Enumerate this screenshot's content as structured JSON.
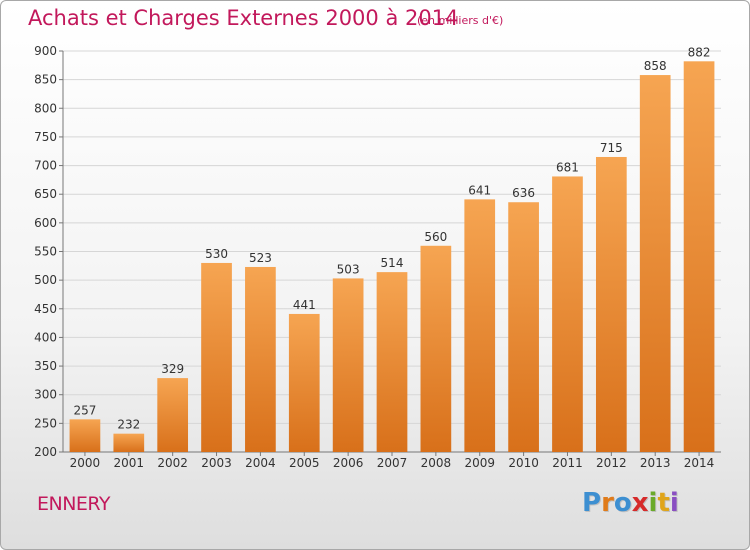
{
  "title": "Achats et Charges Externes 2000 à 2014",
  "subtitle": "(en milliers d'€)",
  "commune": "ENNERY",
  "logo": {
    "letters": [
      "P",
      "r",
      "o",
      "x",
      "i",
      "t",
      "i"
    ],
    "colors": [
      "#3d8fd1",
      "#e07b1a",
      "#3d8fd1",
      "#d62a2a",
      "#6aaa2a",
      "#e0a51a",
      "#8a4fc2"
    ]
  },
  "colors": {
    "bar_light": "#f6a552",
    "bar_dark": "#d8701a",
    "title": "#c2185b"
  },
  "chart_data": {
    "type": "bar",
    "title": "Achats et Charges Externes 2000 à 2014",
    "subtitle": "(en milliers d'€)",
    "categories": [
      "2000",
      "2001",
      "2002",
      "2003",
      "2004",
      "2005",
      "2006",
      "2007",
      "2008",
      "2009",
      "2010",
      "2011",
      "2012",
      "2013",
      "2014"
    ],
    "values": [
      257,
      232,
      329,
      530,
      523,
      441,
      503,
      514,
      560,
      641,
      636,
      681,
      715,
      858,
      882
    ],
    "ylim": [
      200,
      900
    ],
    "yticks": [
      200,
      250,
      300,
      350,
      400,
      450,
      500,
      550,
      600,
      650,
      700,
      750,
      800,
      850,
      900
    ],
    "grid": true,
    "data_labels": true
  }
}
